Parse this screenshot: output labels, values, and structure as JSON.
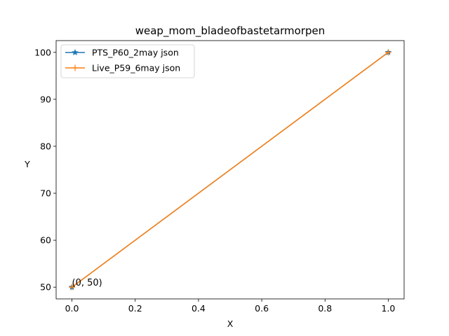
{
  "chart_data": {
    "type": "line",
    "title": "weap_mom_bladeofbastetarmorpen",
    "xlabel": "X",
    "ylabel": "Y",
    "xlim": [
      -0.05,
      1.05
    ],
    "ylim": [
      47.5,
      102.5
    ],
    "xticks": [
      0.0,
      0.2,
      0.4,
      0.6,
      0.8,
      1.0
    ],
    "xtick_labels": [
      "0.0",
      "0.2",
      "0.4",
      "0.6",
      "0.8",
      "1.0"
    ],
    "yticks": [
      50,
      60,
      70,
      80,
      90,
      100
    ],
    "ytick_labels": [
      "50",
      "60",
      "70",
      "80",
      "90",
      "100"
    ],
    "grid": false,
    "legend_position": "top-left",
    "series": [
      {
        "name": "PTS_P60_2may json",
        "x": [
          0,
          1
        ],
        "y": [
          50,
          100
        ],
        "color": "#1f77b4",
        "marker": "star"
      },
      {
        "name": "Live_P59_6may json",
        "x": [
          0,
          1
        ],
        "y": [
          50,
          100
        ],
        "color": "#ff7f0e",
        "marker": "plus"
      }
    ],
    "annotations": [
      {
        "text": "(0, 50)",
        "x": 0,
        "y": 50
      }
    ]
  }
}
